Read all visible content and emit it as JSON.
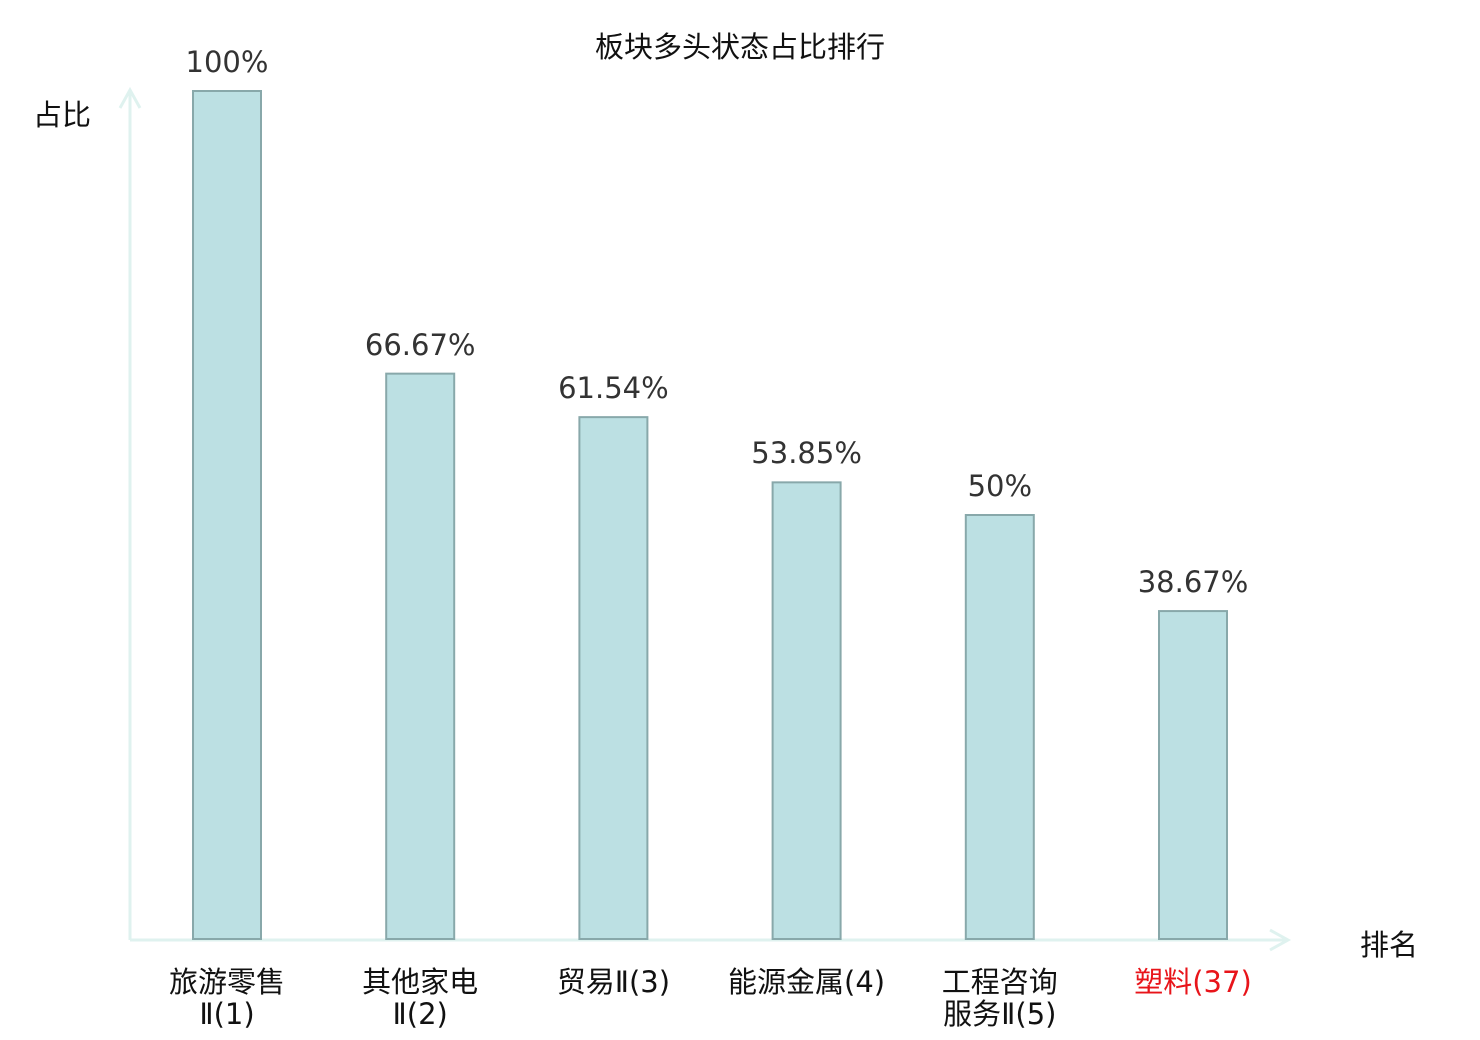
{
  "chart_data": {
    "type": "bar",
    "title": "板块多头状态占比排行",
    "xlabel": "排名",
    "ylabel": "占比",
    "categories": [
      "旅游零售\nⅡ(1)",
      "其他家电\nⅡ(2)",
      "贸易Ⅱ(3)",
      "能源金属(4)",
      "工程咨询\n服务Ⅱ(5)",
      "塑料(37)"
    ],
    "values": [
      100,
      66.67,
      61.54,
      53.85,
      50,
      38.67
    ],
    "value_labels": [
      "100%",
      "66.67%",
      "61.54%",
      "53.85%",
      "50%",
      "38.67%"
    ],
    "highlight_index": 5,
    "ylim": [
      0,
      100
    ],
    "grid": false,
    "colors": {
      "bar_fill": "#bce0e3",
      "bar_stroke": "#88a8aa",
      "axis": "#dff2ef",
      "highlight_text": "#e8141a"
    }
  }
}
